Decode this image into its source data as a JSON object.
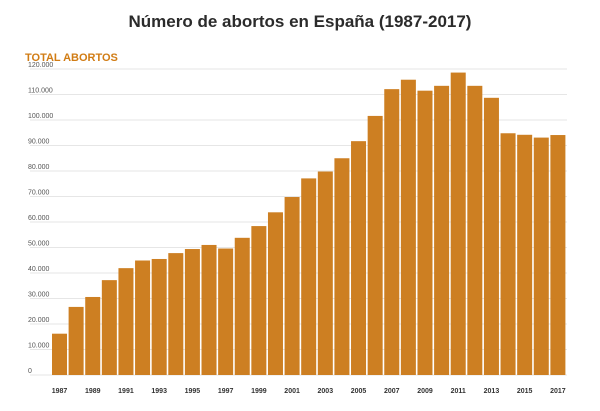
{
  "title": "Número de abortos en España (1987-2017)",
  "chart_data": {
    "type": "bar",
    "title": "Número de abortos en España (1987-2017)",
    "ylabel": "TOTAL ABORTOS",
    "xlabel": "",
    "ylim": [
      0,
      120000
    ],
    "grid": true,
    "bar_color": "#cd7f22",
    "categories": [
      "1987",
      "1988",
      "1989",
      "1990",
      "1991",
      "1992",
      "1993",
      "1994",
      "1995",
      "1996",
      "1997",
      "1998",
      "1999",
      "2000",
      "2001",
      "2002",
      "2003",
      "2004",
      "2005",
      "2006",
      "2007",
      "2008",
      "2009",
      "2010",
      "2011",
      "2012",
      "2013",
      "2014",
      "2015",
      "2016",
      "2017"
    ],
    "values": [
      16200,
      26700,
      30600,
      37200,
      41900,
      44900,
      45500,
      47800,
      49400,
      51000,
      49600,
      53800,
      58400,
      63800,
      69800,
      77100,
      79800,
      85000,
      91700,
      101600,
      112100,
      115800,
      111500,
      113400,
      118600,
      113400,
      108700,
      94800,
      94200,
      93100,
      94100
    ],
    "y_ticks": [
      "0",
      "10.000",
      "20.000",
      "30.000",
      "40.000",
      "50.000",
      "60.000",
      "70.000",
      "80.000",
      "90.000",
      "100.000",
      "110.000",
      "120.000"
    ],
    "x_tick_labels": [
      "1987",
      "1989",
      "1991",
      "1993",
      "1995",
      "1997",
      "1999",
      "2001",
      "2003",
      "2005",
      "2007",
      "2009",
      "2011",
      "2013",
      "2015",
      "2017"
    ]
  }
}
